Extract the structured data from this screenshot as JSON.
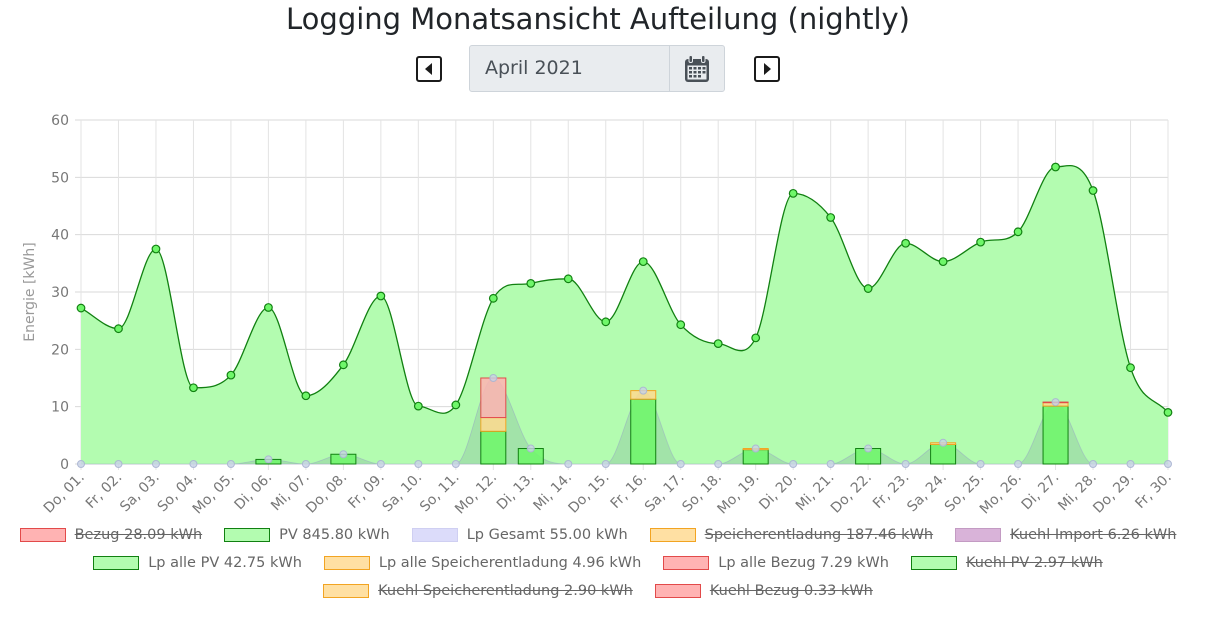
{
  "header": {
    "title": "Logging Monatsansicht Aufteilung (nightly)",
    "date_value": "April 2021"
  },
  "colors": {
    "pv_fill": "#b3fcb0",
    "pv_line": "#118011",
    "lp_pv_fill": "#6ff76a",
    "lp_pv_stroke": "#118011",
    "speicher_fill": "#ffd98f",
    "speicher_stroke": "#f2a422",
    "bezug_fill": "#ffb3b3",
    "bezug_stroke": "#e24a4a",
    "lp_gesamt_fill": "#dcdcfa",
    "kuehl_import_fill": "#d9b3d9",
    "gray_area": "rgba(120,160,150,0.28)"
  },
  "legend": {
    "items": [
      {
        "label": "Bezug 28.09 kWh",
        "fill": "#ffb3b3",
        "stroke": "#e24a4a",
        "hidden": true,
        "row": 0
      },
      {
        "label": "PV 845.80 kWh",
        "fill": "#b3fcb0",
        "stroke": "#118011",
        "hidden": false,
        "row": 0
      },
      {
        "label": "Lp Gesamt 55.00 kWh",
        "fill": "#dcdcfa",
        "stroke": "#cfcff2",
        "hidden": false,
        "row": 0
      },
      {
        "label": "Speicherentladung 187.46 kWh",
        "fill": "#ffe0a3",
        "stroke": "#f2a422",
        "hidden": true,
        "row": 0
      },
      {
        "label": "Kuehl Import 6.26 kWh",
        "fill": "#d9b3d9",
        "stroke": "#c39bc3",
        "hidden": true,
        "row": 0
      },
      {
        "label": "Lp alle PV 42.75 kWh",
        "fill": "#b3fcb0",
        "stroke": "#118011",
        "hidden": false,
        "row": 1
      },
      {
        "label": "Lp alle Speicherentladung 4.96 kWh",
        "fill": "#ffe0a3",
        "stroke": "#f2a422",
        "hidden": false,
        "row": 1
      },
      {
        "label": "Lp alle Bezug 7.29 kWh",
        "fill": "#ffb3b3",
        "stroke": "#e24a4a",
        "hidden": false,
        "row": 1
      },
      {
        "label": "Kuehl PV 2.97 kWh",
        "fill": "#b3fcb0",
        "stroke": "#118011",
        "hidden": true,
        "row": 1
      },
      {
        "label": "Kuehl Speicherentladung 2.90 kWh",
        "fill": "#ffe0a3",
        "stroke": "#f2a422",
        "hidden": true,
        "row": 2
      },
      {
        "label": "Kuehl Bezug 0.33 kWh",
        "fill": "#ffb3b3",
        "stroke": "#e24a4a",
        "hidden": true,
        "row": 2
      }
    ]
  },
  "chart_data": {
    "type": "line",
    "ylabel": "Energie [kWh]",
    "ylim": [
      0,
      60
    ],
    "yticks": [
      0,
      10,
      20,
      30,
      40,
      50,
      60
    ],
    "grid": true,
    "categories": [
      "Do, 01.",
      "Fr, 02.",
      "Sa, 03.",
      "So, 04.",
      "Mo, 05.",
      "Di, 06.",
      "Mi, 07.",
      "Do, 08.",
      "Fr, 09.",
      "Sa, 10.",
      "So, 11.",
      "Mo, 12.",
      "Di, 13.",
      "Mi, 14.",
      "Do, 15.",
      "Fr, 16.",
      "Sa, 17.",
      "So, 18.",
      "Mo, 19.",
      "Di, 20.",
      "Mi, 21.",
      "Do, 22.",
      "Fr, 23.",
      "Sa, 24.",
      "So, 25.",
      "Mo, 26.",
      "Di, 27.",
      "Mi, 28.",
      "Do, 29.",
      "Fr, 30."
    ],
    "series": [
      {
        "name": "PV 845.80 kWh",
        "kind": "area",
        "values": [
          27.2,
          23.6,
          37.5,
          13.3,
          15.5,
          27.3,
          11.9,
          17.3,
          29.3,
          10.1,
          10.3,
          28.9,
          31.5,
          32.3,
          24.8,
          35.3,
          24.3,
          21.0,
          22.0,
          47.2,
          43.0,
          30.6,
          38.5,
          35.3,
          38.7,
          40.5,
          51.8,
          47.7,
          16.8,
          9.0
        ]
      },
      {
        "name": "Lp Gesamt 55.00 kWh",
        "kind": "area",
        "values": [
          0,
          0,
          0,
          0,
          0,
          0.8,
          0,
          1.7,
          0,
          0,
          0,
          15.0,
          2.7,
          0,
          0,
          12.8,
          0,
          0,
          2.7,
          0,
          0,
          2.7,
          0,
          3.7,
          0,
          0,
          10.8,
          0,
          0,
          0
        ]
      },
      {
        "name": "Lp alle PV 42.75 kWh",
        "kind": "bar",
        "values": [
          0,
          0,
          0,
          0,
          0,
          0.8,
          0,
          1.7,
          0,
          0,
          0,
          5.7,
          2.7,
          0,
          0,
          11.3,
          0,
          0,
          2.5,
          0,
          0,
          2.7,
          0,
          3.4,
          0,
          0,
          10.1,
          0,
          0,
          0
        ]
      },
      {
        "name": "Lp alle Speicherentladung 4.96 kWh",
        "kind": "bar",
        "values": [
          0,
          0,
          0,
          0,
          0,
          0,
          0,
          0,
          0,
          0,
          0,
          2.4,
          0,
          0,
          0,
          1.5,
          0,
          0,
          0.2,
          0,
          0,
          0,
          0,
          0.3,
          0,
          0,
          0.6,
          0,
          0,
          0
        ]
      },
      {
        "name": "Lp alle Bezug 7.29 kWh",
        "kind": "bar",
        "values": [
          0,
          0,
          0,
          0,
          0,
          0,
          0,
          0,
          0,
          0,
          0,
          6.9,
          0,
          0,
          0,
          0,
          0,
          0,
          0,
          0,
          0,
          0,
          0,
          0,
          0,
          0,
          0.1,
          0,
          0,
          0
        ]
      }
    ]
  }
}
